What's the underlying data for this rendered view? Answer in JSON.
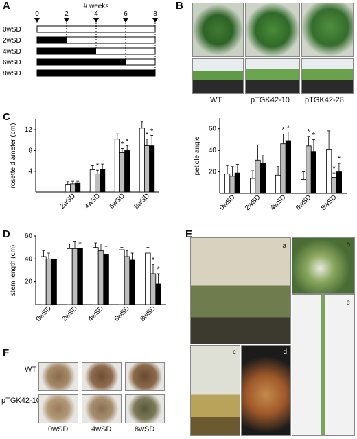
{
  "panels": {
    "A": {
      "letter": "A",
      "axis_title": "# weeks",
      "ticks": [
        "0",
        "2",
        "4",
        "6",
        "8"
      ],
      "rows": [
        {
          "label": "0wSD",
          "sd_weeks": 0
        },
        {
          "label": "2wSD",
          "sd_weeks": 2
        },
        {
          "label": "4wSD",
          "sd_weeks": 4
        },
        {
          "label": "6wSD",
          "sd_weeks": 6
        },
        {
          "label": "8wSD",
          "sd_weeks": 8
        }
      ]
    },
    "B": {
      "letter": "B",
      "labels": [
        "WT",
        "pTGK42-10",
        "pTGK42-28"
      ]
    },
    "C": {
      "letter": "C"
    },
    "D": {
      "letter": "D"
    },
    "E": {
      "letter": "E",
      "sub": [
        "a",
        "b",
        "c",
        "d",
        "e"
      ]
    },
    "F": {
      "letter": "F",
      "row_labels": [
        "WT",
        "pTGK42-10"
      ],
      "col_labels": [
        "0wSD",
        "4wSD",
        "8wSD"
      ]
    }
  },
  "chart_data": [
    {
      "id": "rosette",
      "type": "bar",
      "ylabel": "rosette diameter (cm)",
      "ylim": [
        0,
        14
      ],
      "yticks": [
        4,
        8,
        12
      ],
      "categories": [
        "",
        "2wSD",
        "4wSD",
        "6wSD",
        "8wSD"
      ],
      "series": [
        {
          "color": "#ffffff",
          "values": [
            null,
            1.5,
            4.3,
            10.2,
            12.3
          ],
          "err": [
            0,
            0.5,
            0.8,
            1.0,
            1.2
          ]
        },
        {
          "color": "#bdbdbd",
          "values": [
            null,
            1.6,
            3.5,
            7.6,
            8.9
          ],
          "err": [
            0,
            0.5,
            0.7,
            0.8,
            1.3
          ]
        },
        {
          "color": "#000000",
          "values": [
            null,
            1.7,
            4.4,
            8.0,
            8.9
          ],
          "err": [
            0,
            0.4,
            1.0,
            0.9,
            2.0
          ]
        }
      ],
      "stars": [
        [
          2,
          1
        ],
        [
          3,
          1
        ],
        [
          3,
          2
        ],
        [
          4,
          1
        ],
        [
          4,
          2
        ]
      ]
    },
    {
      "id": "petiole",
      "type": "bar",
      "ylabel": "petiole angle",
      "ylim": [
        0,
        70
      ],
      "yticks": [
        20,
        40,
        60
      ],
      "categories": [
        "0wSD",
        "2wSD",
        "4wSD",
        "6wSD",
        "8wSD"
      ],
      "series": [
        {
          "color": "#ffffff",
          "values": [
            18,
            14,
            17,
            13,
            41
          ],
          "err": [
            8,
            7,
            8,
            7,
            17
          ]
        },
        {
          "color": "#bdbdbd",
          "values": [
            16,
            31,
            46,
            44,
            15
          ],
          "err": [
            9,
            14,
            9,
            9,
            4
          ]
        },
        {
          "color": "#000000",
          "values": [
            19,
            28,
            49,
            39,
            20
          ],
          "err": [
            8,
            7,
            8,
            11,
            8
          ]
        }
      ],
      "stars": [
        [
          2,
          1
        ],
        [
          2,
          2
        ],
        [
          3,
          1
        ],
        [
          3,
          2
        ],
        [
          4,
          1
        ],
        [
          4,
          2
        ]
      ]
    },
    {
      "id": "stem",
      "type": "bar",
      "ylabel": "stem length (cm)",
      "ylim": [
        0,
        60
      ],
      "yticks": [
        20,
        40,
        60
      ],
      "categories": [
        "0wSD",
        "2wSD",
        "4wSD",
        "6wSD",
        "8wSD"
      ],
      "series": [
        {
          "color": "#ffffff",
          "values": [
            42,
            49,
            50,
            48,
            45
          ],
          "err": [
            5,
            4,
            4,
            2,
            5
          ]
        },
        {
          "color": "#bdbdbd",
          "values": [
            40,
            49,
            47,
            42,
            27
          ],
          "err": [
            5,
            6,
            6,
            5,
            8
          ]
        },
        {
          "color": "#000000",
          "values": [
            40,
            49,
            44,
            39,
            18
          ],
          "err": [
            6,
            5,
            7,
            6,
            9
          ]
        }
      ],
      "stars": [
        [
          4,
          1
        ],
        [
          4,
          2
        ]
      ]
    }
  ]
}
